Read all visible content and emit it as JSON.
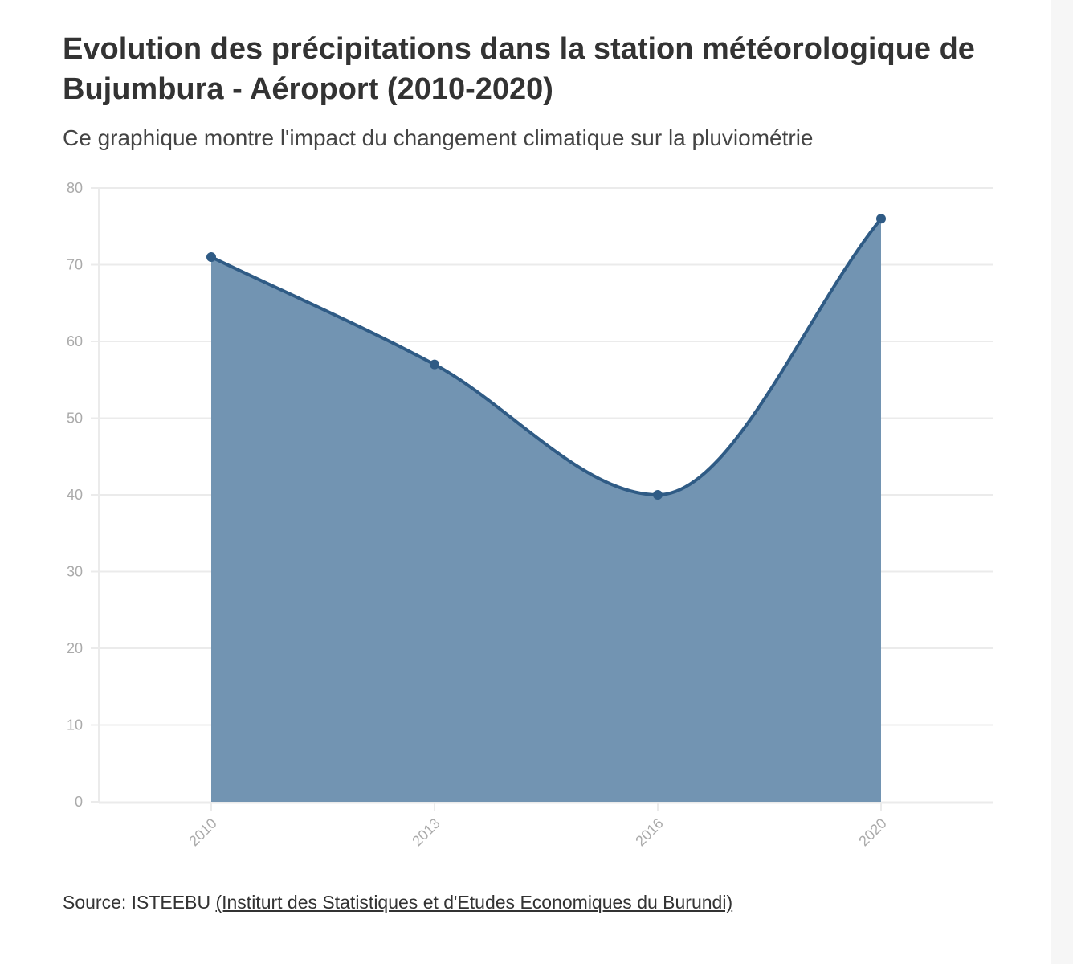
{
  "chart_data": {
    "type": "area",
    "title": "Evolution des précipitations dans la station météorologique de Bujumbura - Aéroport (2010-2020)",
    "subtitle": "Ce graphique montre l'impact du changement climatique sur la pluviométrie",
    "categories": [
      "2010",
      "2013",
      "2016",
      "2020"
    ],
    "series": [
      {
        "values": [
          71,
          57,
          40,
          76
        ]
      }
    ],
    "ylim": [
      0,
      80
    ],
    "yticks": [
      "0",
      "10",
      "20",
      "30",
      "40",
      "50",
      "60",
      "70",
      "80"
    ],
    "grid": true,
    "curve": "smooth",
    "colors": {
      "line": "#2f5b85",
      "fill": "#7294b2",
      "grid": "#ebebeb",
      "tick_text": "#aaaaaa"
    }
  },
  "footer": {
    "source_prefix": "Source: ISTEEBU ",
    "source_link": "(Institurt des Statistiques et d'Etudes Economiques du Burundi)"
  }
}
